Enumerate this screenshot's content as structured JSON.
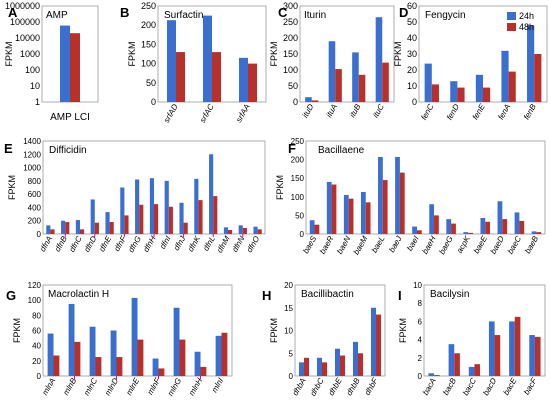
{
  "legend": {
    "entries": [
      {
        "label": "24h",
        "color": "#3a6fd0"
      },
      {
        "label": "48h",
        "color": "#b8302a"
      }
    ]
  },
  "colors": {
    "bar24": "#3a6fd0",
    "bar48": "#b8302a",
    "axis": "#999999",
    "magenta_tick": "#cc00cc"
  },
  "chart_data": [
    {
      "id": "A",
      "type": "bar",
      "title": "AMP",
      "ylabel": "FPKM",
      "scale": "log",
      "ylim": [
        1,
        1000000
      ],
      "yticks": [
        "1",
        "10",
        "100",
        "1000",
        "10000",
        "100000",
        "1000000"
      ],
      "categories": [
        "AMP LCI"
      ],
      "series": [
        {
          "name": "24h",
          "values": [
            60000
          ]
        },
        {
          "name": "48h",
          "values": [
            20000
          ]
        }
      ]
    },
    {
      "id": "B",
      "type": "bar",
      "title": "Surfactin",
      "ylabel": "FPKM",
      "ylim": [
        0,
        250
      ],
      "yticks": [
        "0",
        "50",
        "100",
        "150",
        "200",
        "250"
      ],
      "categories": [
        "srfAD",
        "srfAC",
        "srfAA"
      ],
      "series": [
        {
          "name": "24h",
          "values": [
            213,
            225,
            115
          ]
        },
        {
          "name": "48h",
          "values": [
            130,
            130,
            100
          ]
        }
      ]
    },
    {
      "id": "C",
      "type": "bar",
      "title": "Iturin",
      "ylabel": "FPKM",
      "ylim": [
        0,
        300
      ],
      "yticks": [
        "0",
        "50",
        "100",
        "150",
        "200",
        "250",
        "300"
      ],
      "categories": [
        "ituD",
        "ituA",
        "ituB",
        "ituC"
      ],
      "series": [
        {
          "name": "24h",
          "values": [
            15,
            190,
            155,
            265
          ]
        },
        {
          "name": "48h",
          "values": [
            5,
            103,
            85,
            123
          ]
        }
      ]
    },
    {
      "id": "D",
      "type": "bar",
      "title": "Fengycin",
      "ylabel": "FPKM",
      "ylim": [
        0,
        60
      ],
      "yticks": [
        "0",
        "10",
        "20",
        "30",
        "40",
        "50",
        "60"
      ],
      "categories": [
        "fenC",
        "fenD",
        "fenE",
        "fenA",
        "fenB"
      ],
      "series": [
        {
          "name": "24h",
          "values": [
            24,
            13,
            17,
            32,
            48
          ]
        },
        {
          "name": "48h",
          "values": [
            11,
            9,
            9,
            19,
            30
          ]
        }
      ]
    },
    {
      "id": "E",
      "type": "bar",
      "title": "Difficidin",
      "ylabel": "FPKM",
      "ylim": [
        0,
        1400
      ],
      "yticks": [
        "0",
        "200",
        "400",
        "600",
        "800",
        "1000",
        "1200",
        "1400"
      ],
      "categories": [
        "dfnA",
        "dfnB",
        "dfnC",
        "dfnD",
        "dfnE",
        "dfnF",
        "dfnG",
        "dfnH",
        "dfnI",
        "dfnJ",
        "dfnK",
        "dfnL",
        "dfnM",
        "dfnN",
        "dfnO"
      ],
      "series": [
        {
          "name": "24h",
          "values": [
            130,
            200,
            210,
            520,
            330,
            700,
            820,
            840,
            800,
            470,
            830,
            1200,
            100,
            130,
            110
          ]
        },
        {
          "name": "48h",
          "values": [
            70,
            180,
            70,
            170,
            180,
            280,
            440,
            450,
            410,
            170,
            510,
            570,
            60,
            90,
            70
          ]
        },
        {
          "name": "",
          "values": [
            0,
            0,
            0,
            0,
            0,
            0,
            0,
            0,
            0,
            0,
            0,
            0,
            0,
            0,
            0
          ]
        }
      ]
    },
    {
      "id": "F",
      "type": "bar",
      "title": "Bacillaene",
      "ylabel": "FPKM",
      "ylim": [
        0,
        250
      ],
      "yticks": [
        "0",
        "50",
        "100",
        "150",
        "200",
        "250"
      ],
      "categories": [
        "baeS",
        "baeR",
        "baeN",
        "baeM",
        "baeL",
        "baeJ",
        "baeI",
        "baeH",
        "baeG",
        "acpK",
        "baeE",
        "baeD",
        "baeC",
        "baeB"
      ],
      "series": [
        {
          "name": "24h",
          "values": [
            37,
            140,
            105,
            113,
            207,
            207,
            20,
            80,
            40,
            5,
            43,
            88,
            58,
            7
          ]
        },
        {
          "name": "48h",
          "values": [
            25,
            133,
            95,
            85,
            145,
            165,
            10,
            50,
            28,
            3,
            33,
            40,
            35,
            5
          ]
        }
      ]
    },
    {
      "id": "G",
      "type": "bar",
      "title": "Macrolactin H",
      "ylabel": "FPKM",
      "ylim": [
        0,
        120
      ],
      "yticks": [
        "0",
        "20",
        "40",
        "60",
        "80",
        "100",
        "120"
      ],
      "categories": [
        "mlnA",
        "mlnB",
        "mlnC",
        "mlnD",
        "mlnE",
        "mlnF",
        "mlnG",
        "mlnH",
        "mlnI"
      ],
      "series": [
        {
          "name": "24h",
          "values": [
            56,
            95,
            65,
            60,
            103,
            23,
            90,
            32,
            53
          ]
        },
        {
          "name": "48h",
          "values": [
            27,
            45,
            25,
            25,
            48,
            10,
            48,
            12,
            57
          ]
        }
      ]
    },
    {
      "id": "H",
      "type": "bar",
      "title": "Bacillibactin",
      "ylabel": "FPKM",
      "ylim": [
        0,
        20
      ],
      "yticks": [
        "0",
        "5",
        "10",
        "15",
        "20"
      ],
      "categories": [
        "dhbA",
        "dhbC",
        "dhbE",
        "dhbB",
        "dhbF"
      ],
      "series": [
        {
          "name": "24h",
          "values": [
            3,
            4,
            6,
            7.5,
            15
          ]
        },
        {
          "name": "48h",
          "values": [
            4,
            3,
            4.5,
            5,
            13.5
          ]
        }
      ]
    },
    {
      "id": "I",
      "type": "bar",
      "title": "Bacilysin",
      "ylabel": "FPKM",
      "ylim": [
        0,
        10
      ],
      "yticks": [
        "0",
        "2",
        "4",
        "6",
        "8",
        "10"
      ],
      "categories": [
        "bacA",
        "bacB",
        "bacC",
        "bacD",
        "bacE",
        "bacF"
      ],
      "series": [
        {
          "name": "24h",
          "values": [
            0.3,
            3.5,
            1,
            6,
            6,
            4.5
          ]
        },
        {
          "name": "48h",
          "values": [
            0.1,
            2.5,
            1.3,
            4.5,
            6.5,
            4.3
          ]
        }
      ]
    }
  ]
}
